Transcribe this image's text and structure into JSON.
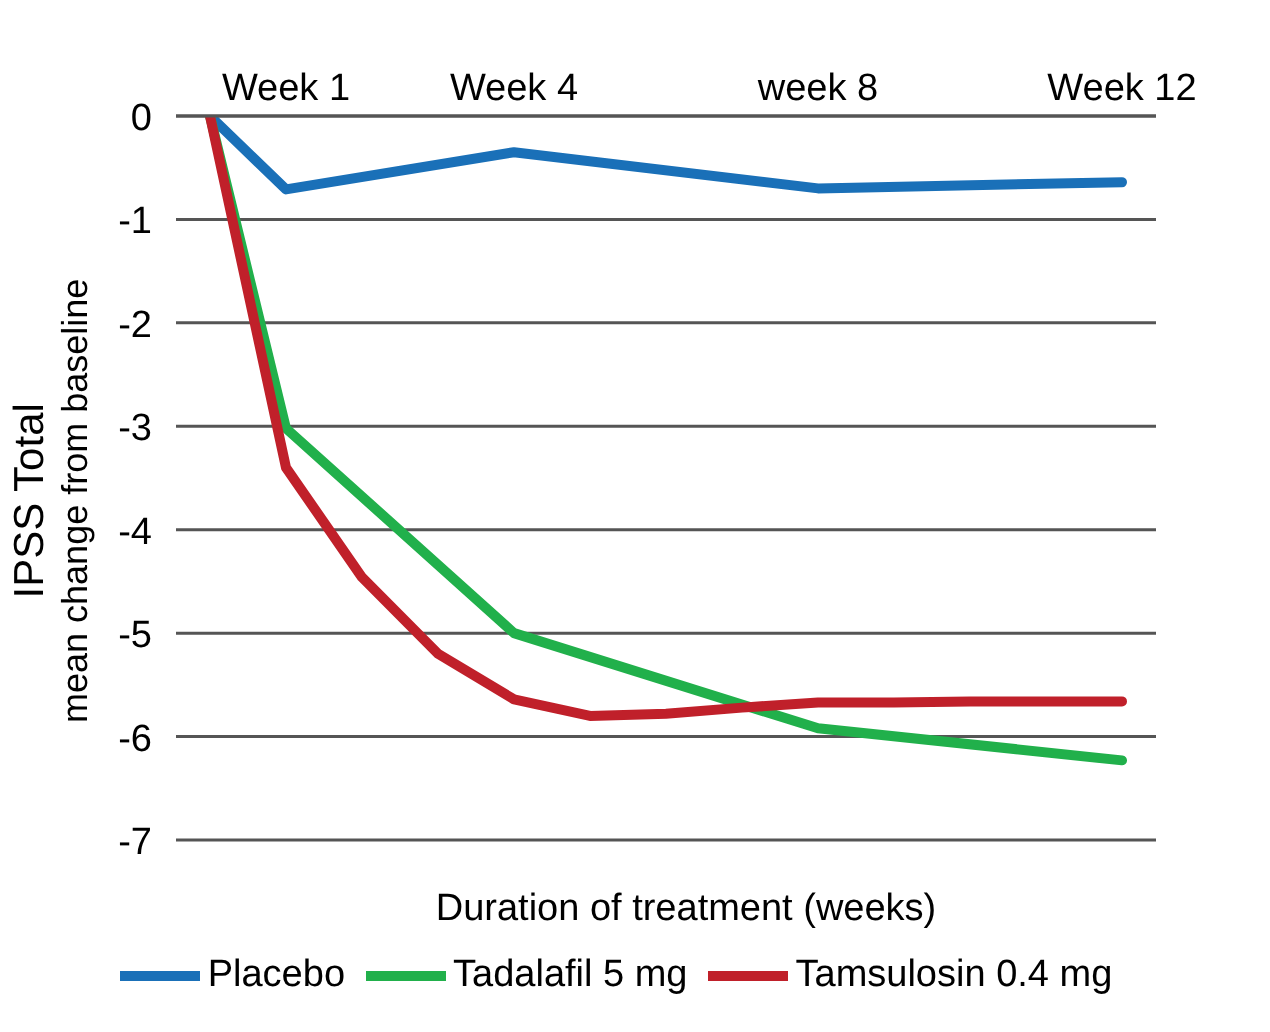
{
  "chart_data": {
    "type": "line",
    "xlabel": "Duration of treatment (weeks)",
    "ylabel": "IPSS Total\nmean change from baseline",
    "categories": [
      null,
      "Week 1",
      null,
      null,
      "Week 4",
      null,
      null,
      null,
      "week 8",
      null,
      null,
      null,
      "Week 12"
    ],
    "ylim": [
      -7,
      0
    ],
    "yticks": [
      0,
      -1,
      -2,
      -3,
      -4,
      -5,
      -6,
      -7
    ],
    "grid": "y",
    "legend": "bottom",
    "line_style": "solid",
    "marker": "none",
    "series": [
      {
        "name": "Placebo",
        "color": "#1a70b8",
        "values": [
          0,
          -0.71,
          null,
          null,
          -0.35,
          null,
          null,
          null,
          -0.7,
          null,
          null,
          null,
          -0.64
        ]
      },
      {
        "name": "Tadalafil 5 mg",
        "color": "#21b04b",
        "values": [
          0,
          -3.02,
          null,
          null,
          -5.0,
          null,
          null,
          null,
          -5.92,
          null,
          null,
          null,
          -6.23
        ]
      },
      {
        "name": "Tamsulosin 0.4 mg",
        "color": "#c0202a",
        "values": [
          0,
          -3.4,
          -4.46,
          -5.2,
          -5.64,
          -5.8,
          -5.78,
          -5.72,
          -5.67,
          -5.67,
          -5.66,
          -5.66,
          -5.66
        ]
      }
    ]
  }
}
